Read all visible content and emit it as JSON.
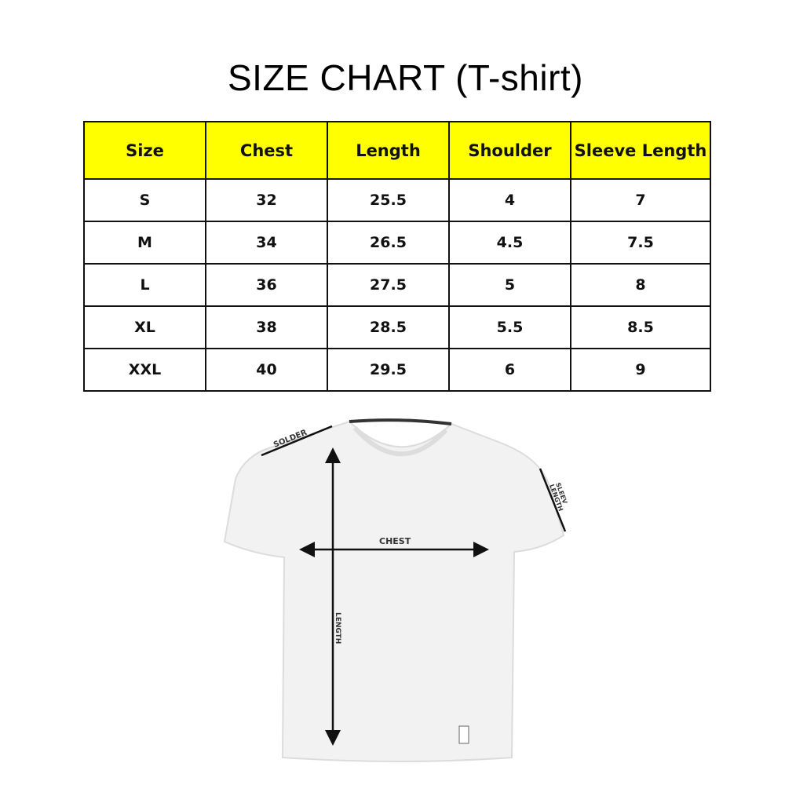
{
  "title": "SIZE CHART (T-shirt)",
  "table": {
    "headers": [
      "Size",
      "Chest",
      "Length",
      "Shoulder",
      "Sleeve Length"
    ],
    "rows": [
      [
        "S",
        "32",
        "25.5",
        "4",
        "7"
      ],
      [
        "M",
        "34",
        "26.5",
        "4.5",
        "7.5"
      ],
      [
        "L",
        "36",
        "27.5",
        "5",
        "8"
      ],
      [
        "XL",
        "38",
        "28.5",
        "5.5",
        "8.5"
      ],
      [
        "XXL",
        "40",
        "29.5",
        "6",
        "9"
      ]
    ],
    "header_color": "#ffff00"
  },
  "diagram": {
    "labels": {
      "shoulder": "SOLDER",
      "sleeve_1": "SLEEV",
      "sleeve_2": "LENGTH",
      "chest": "CHEST",
      "length": "LENGTH"
    }
  }
}
